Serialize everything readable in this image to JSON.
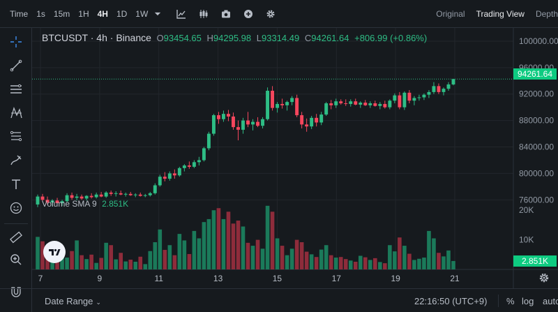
{
  "topbar": {
    "time_label": "Time",
    "intervals": [
      "1s",
      "15m",
      "1H",
      "4H",
      "1D",
      "1W"
    ],
    "active_interval": "4H",
    "view_tabs": [
      "Original",
      "Trading View",
      "Depth"
    ],
    "active_view": "Trading View"
  },
  "legend": {
    "symbol": "BTCUSDT · 4h · Binance",
    "open_key": "O",
    "open": "93454.65",
    "high_key": "H",
    "high": "94295.98",
    "low_key": "L",
    "low": "93314.49",
    "close_key": "C",
    "close": "94261.64",
    "change": "+806.99 (+0.86%)"
  },
  "volume_legend": {
    "label": "Volume SMA 9",
    "value": "2.851K"
  },
  "price_tag": "94261.64",
  "volume_tag": "2.851K",
  "footer": {
    "date_range": "Date Range",
    "time": "22:16:50 (UTC+9)",
    "percent": "%",
    "log": "log",
    "auto": "auto"
  },
  "colors": {
    "up": "#2ebd85",
    "down": "#f6465d",
    "up_volume": "#1b7a5a",
    "down_volume": "#8e2c3b",
    "grid": "#22262c",
    "background": "#161a1e"
  },
  "chart_data": {
    "type": "candlestick",
    "symbol": "BTCUSDT",
    "interval": "4h",
    "price_axis": {
      "ticks": [
        100000,
        96000,
        92000,
        88000,
        84000,
        80000,
        76000
      ],
      "tick_labels": [
        "100000.00",
        "96000.00",
        "92000.00",
        "88000.00",
        "84000.00",
        "80000.00",
        "76000.00"
      ],
      "range": [
        73500,
        102000
      ]
    },
    "volume_axis": {
      "ticks": [
        20000,
        10000
      ],
      "tick_labels": [
        "20K",
        "10K"
      ],
      "range": [
        0,
        25000
      ]
    },
    "x_axis": {
      "ticks": [
        7,
        9,
        11,
        13,
        15,
        17,
        19,
        21
      ],
      "tick_labels": [
        "7",
        "9",
        "11",
        "13",
        "15",
        "17",
        "19",
        "21"
      ]
    },
    "last_price": 94261.64,
    "candles": [
      {
        "o": 75300,
        "h": 76800,
        "l": 74900,
        "c": 76500,
        "v": 11000
      },
      {
        "o": 76500,
        "h": 76900,
        "l": 75800,
        "c": 76000,
        "v": 9500
      },
      {
        "o": 76000,
        "h": 76500,
        "l": 75300,
        "c": 75600,
        "v": 7000
      },
      {
        "o": 75600,
        "h": 76100,
        "l": 75000,
        "c": 75900,
        "v": 4200
      },
      {
        "o": 75900,
        "h": 76300,
        "l": 75400,
        "c": 75500,
        "v": 6800
      },
      {
        "o": 75500,
        "h": 76000,
        "l": 75100,
        "c": 75800,
        "v": 5200
      },
      {
        "o": 75800,
        "h": 77000,
        "l": 75600,
        "c": 76700,
        "v": 4000
      },
      {
        "o": 76700,
        "h": 77100,
        "l": 76000,
        "c": 76300,
        "v": 6200
      },
      {
        "o": 76300,
        "h": 76900,
        "l": 75900,
        "c": 76500,
        "v": 9800
      },
      {
        "o": 76500,
        "h": 76800,
        "l": 76000,
        "c": 76200,
        "v": 4800
      },
      {
        "o": 76200,
        "h": 76700,
        "l": 75900,
        "c": 76600,
        "v": 3500
      },
      {
        "o": 76600,
        "h": 77000,
        "l": 76200,
        "c": 76400,
        "v": 5000
      },
      {
        "o": 76400,
        "h": 77100,
        "l": 76200,
        "c": 76800,
        "v": 2200
      },
      {
        "o": 76800,
        "h": 77200,
        "l": 76400,
        "c": 76500,
        "v": 3900
      },
      {
        "o": 76500,
        "h": 77300,
        "l": 76300,
        "c": 77100,
        "v": 9000
      },
      {
        "o": 77100,
        "h": 77400,
        "l": 76600,
        "c": 76900,
        "v": 8200
      },
      {
        "o": 76900,
        "h": 77300,
        "l": 76500,
        "c": 77000,
        "v": 3400
      },
      {
        "o": 77000,
        "h": 77400,
        "l": 76700,
        "c": 76800,
        "v": 5600
      },
      {
        "o": 76800,
        "h": 77100,
        "l": 76500,
        "c": 76900,
        "v": 2700
      },
      {
        "o": 76900,
        "h": 77200,
        "l": 76600,
        "c": 76700,
        "v": 3300
      },
      {
        "o": 76700,
        "h": 77000,
        "l": 76400,
        "c": 76800,
        "v": 2600
      },
      {
        "o": 76800,
        "h": 77100,
        "l": 76500,
        "c": 76600,
        "v": 4300
      },
      {
        "o": 76600,
        "h": 76900,
        "l": 76400,
        "c": 76700,
        "v": 1800
      },
      {
        "o": 76700,
        "h": 77200,
        "l": 76500,
        "c": 77000,
        "v": 6200
      },
      {
        "o": 77000,
        "h": 78500,
        "l": 76800,
        "c": 78200,
        "v": 9200
      },
      {
        "o": 78200,
        "h": 79800,
        "l": 78000,
        "c": 79500,
        "v": 13500
      },
      {
        "o": 79500,
        "h": 80200,
        "l": 78800,
        "c": 79200,
        "v": 6600
      },
      {
        "o": 79200,
        "h": 80300,
        "l": 78900,
        "c": 80000,
        "v": 8200
      },
      {
        "o": 80000,
        "h": 80600,
        "l": 79200,
        "c": 79700,
        "v": 4800
      },
      {
        "o": 79700,
        "h": 81000,
        "l": 79500,
        "c": 80800,
        "v": 12000
      },
      {
        "o": 80800,
        "h": 81400,
        "l": 80300,
        "c": 81200,
        "v": 9800
      },
      {
        "o": 81200,
        "h": 81800,
        "l": 80700,
        "c": 81000,
        "v": 5200
      },
      {
        "o": 81000,
        "h": 82000,
        "l": 80800,
        "c": 81700,
        "v": 13000
      },
      {
        "o": 81700,
        "h": 82500,
        "l": 81200,
        "c": 82000,
        "v": 10500
      },
      {
        "o": 82000,
        "h": 84000,
        "l": 81800,
        "c": 83800,
        "v": 16000
      },
      {
        "o": 83800,
        "h": 86300,
        "l": 83500,
        "c": 86000,
        "v": 17000
      },
      {
        "o": 86000,
        "h": 89000,
        "l": 85700,
        "c": 88800,
        "v": 20000
      },
      {
        "o": 88800,
        "h": 89300,
        "l": 87500,
        "c": 88200,
        "v": 20700
      },
      {
        "o": 88200,
        "h": 89500,
        "l": 87800,
        "c": 89000,
        "v": 17000
      },
      {
        "o": 89000,
        "h": 89600,
        "l": 87900,
        "c": 88600,
        "v": 19500
      },
      {
        "o": 88600,
        "h": 89200,
        "l": 86600,
        "c": 87000,
        "v": 15500
      },
      {
        "o": 87000,
        "h": 88000,
        "l": 85000,
        "c": 86600,
        "v": 16500
      },
      {
        "o": 86600,
        "h": 88400,
        "l": 86000,
        "c": 88000,
        "v": 14500
      },
      {
        "o": 88000,
        "h": 89300,
        "l": 87000,
        "c": 87400,
        "v": 9000
      },
      {
        "o": 87400,
        "h": 88200,
        "l": 86500,
        "c": 87800,
        "v": 8000
      },
      {
        "o": 87800,
        "h": 88500,
        "l": 87000,
        "c": 87200,
        "v": 10000
      },
      {
        "o": 87200,
        "h": 88500,
        "l": 86800,
        "c": 88200,
        "v": 7000
      },
      {
        "o": 88200,
        "h": 93000,
        "l": 88000,
        "c": 92500,
        "v": 21500
      },
      {
        "o": 92500,
        "h": 93200,
        "l": 89500,
        "c": 89900,
        "v": 19500
      },
      {
        "o": 89900,
        "h": 90800,
        "l": 89200,
        "c": 90500,
        "v": 10500
      },
      {
        "o": 90500,
        "h": 91300,
        "l": 89800,
        "c": 90300,
        "v": 8000
      },
      {
        "o": 90300,
        "h": 91000,
        "l": 89500,
        "c": 90800,
        "v": 4800
      },
      {
        "o": 90800,
        "h": 91700,
        "l": 90300,
        "c": 91400,
        "v": 7000
      },
      {
        "o": 91400,
        "h": 91900,
        "l": 88500,
        "c": 88800,
        "v": 10000
      },
      {
        "o": 88800,
        "h": 89300,
        "l": 86800,
        "c": 87400,
        "v": 9200
      },
      {
        "o": 87400,
        "h": 88300,
        "l": 86300,
        "c": 87100,
        "v": 6000
      },
      {
        "o": 87100,
        "h": 88700,
        "l": 86700,
        "c": 88400,
        "v": 5100
      },
      {
        "o": 88400,
        "h": 89000,
        "l": 87100,
        "c": 87700,
        "v": 4200
      },
      {
        "o": 87700,
        "h": 89300,
        "l": 87300,
        "c": 88900,
        "v": 6700
      },
      {
        "o": 88900,
        "h": 90800,
        "l": 88700,
        "c": 90600,
        "v": 8200
      },
      {
        "o": 90600,
        "h": 91100,
        "l": 89700,
        "c": 90300,
        "v": 4800
      },
      {
        "o": 90300,
        "h": 91300,
        "l": 89900,
        "c": 90900,
        "v": 4000
      },
      {
        "o": 90900,
        "h": 91200,
        "l": 90400,
        "c": 90600,
        "v": 4200
      },
      {
        "o": 90600,
        "h": 91200,
        "l": 90200,
        "c": 90500,
        "v": 3500
      },
      {
        "o": 90500,
        "h": 91200,
        "l": 90100,
        "c": 90900,
        "v": 3000
      },
      {
        "o": 90900,
        "h": 91300,
        "l": 90300,
        "c": 90400,
        "v": 2600
      },
      {
        "o": 90400,
        "h": 90900,
        "l": 89900,
        "c": 90700,
        "v": 4600
      },
      {
        "o": 90700,
        "h": 91100,
        "l": 90200,
        "c": 90300,
        "v": 4100
      },
      {
        "o": 90300,
        "h": 90900,
        "l": 89900,
        "c": 90600,
        "v": 3200
      },
      {
        "o": 90600,
        "h": 91000,
        "l": 90100,
        "c": 90200,
        "v": 3800
      },
      {
        "o": 90200,
        "h": 90800,
        "l": 89700,
        "c": 90500,
        "v": 2500
      },
      {
        "o": 90500,
        "h": 91000,
        "l": 89800,
        "c": 90000,
        "v": 2100
      },
      {
        "o": 90000,
        "h": 91200,
        "l": 89700,
        "c": 91000,
        "v": 8200
      },
      {
        "o": 91000,
        "h": 92100,
        "l": 90600,
        "c": 91800,
        "v": 6100
      },
      {
        "o": 91800,
        "h": 92300,
        "l": 89700,
        "c": 90000,
        "v": 10800
      },
      {
        "o": 90000,
        "h": 92400,
        "l": 89600,
        "c": 92200,
        "v": 8000
      },
      {
        "o": 92200,
        "h": 92600,
        "l": 90600,
        "c": 91000,
        "v": 5300
      },
      {
        "o": 91000,
        "h": 91700,
        "l": 90300,
        "c": 91400,
        "v": 3200
      },
      {
        "o": 91400,
        "h": 91900,
        "l": 91000,
        "c": 91500,
        "v": 3600
      },
      {
        "o": 91500,
        "h": 92100,
        "l": 91100,
        "c": 91900,
        "v": 4000
      },
      {
        "o": 91900,
        "h": 92600,
        "l": 91400,
        "c": 92300,
        "v": 13000
      },
      {
        "o": 92300,
        "h": 93800,
        "l": 92000,
        "c": 93200,
        "v": 10500
      },
      {
        "o": 93200,
        "h": 93600,
        "l": 92000,
        "c": 92300,
        "v": 5600
      },
      {
        "o": 92300,
        "h": 93000,
        "l": 91800,
        "c": 92800,
        "v": 4400
      },
      {
        "o": 92800,
        "h": 93800,
        "l": 92500,
        "c": 93454.65,
        "v": 6400
      },
      {
        "o": 93454.65,
        "h": 94295.98,
        "l": 93314.49,
        "c": 94261.64,
        "v": 2851
      }
    ]
  }
}
